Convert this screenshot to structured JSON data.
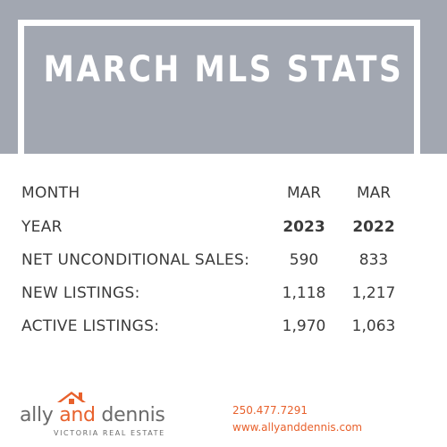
{
  "header": {
    "title": "MARCH MLS STATS"
  },
  "stats": {
    "rows": [
      {
        "label": "MONTH",
        "v1": "MAR",
        "v2": "MAR",
        "bold": false
      },
      {
        "label": "YEAR",
        "v1": "2023",
        "v2": "2022",
        "bold": true
      },
      {
        "label": "NET UNCONDITIONAL SALES:",
        "v1": "590",
        "v2": "833",
        "bold": false
      },
      {
        "label": "NEW LISTINGS:",
        "v1": "1,118",
        "v2": "1,217",
        "bold": false
      },
      {
        "label": "ACTIVE LISTINGS:",
        "v1": "1,970",
        "v2": "1,063",
        "bold": false
      }
    ]
  },
  "footer": {
    "logo_word1": "ally ",
    "logo_word2": "and",
    "logo_word3": " dennis",
    "logo_tagline": "VICTORIA REAL ESTATE",
    "phone": "250.477.7291",
    "website": "www.allyanddennis.com"
  },
  "colors": {
    "banner": "#a2a7b1",
    "accent": "#e8612c",
    "text": "#3b3b3b"
  },
  "icons": {
    "logo": "house-roof-icon"
  }
}
